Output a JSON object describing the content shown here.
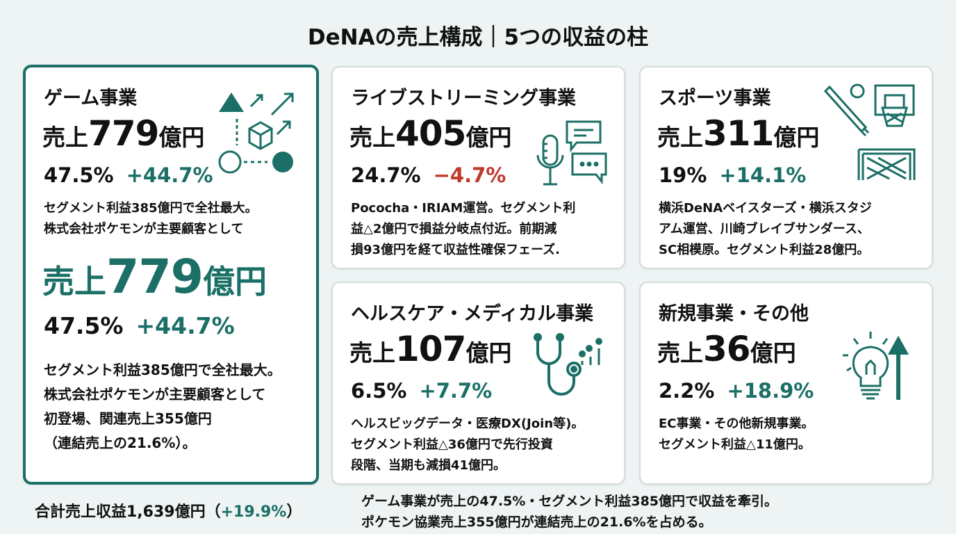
{
  "title": "DeNAの売上構成｜5つの収益の柱",
  "colors": {
    "accent": "#1b6f66",
    "negative": "#c0392b",
    "background": "#eef3f3"
  },
  "cards": [
    {
      "name": "ゲーム事業",
      "rev_prefix": "売上",
      "rev_num": "779",
      "rev_unit": "億円",
      "share": "47.5%",
      "growth": "+44.7%",
      "growth_dir": "up",
      "icon": "shapes-growth-icon",
      "desc": [
        "セグメント利益385億円で全社最大。",
        "株式会社ポケモンが主要顧客として"
      ],
      "highlight": {
        "rev_prefix": "売上",
        "rev_num": "779",
        "rev_unit": "億円",
        "share": "47.5%",
        "growth": "+44.7%",
        "desc": [
          "セグメント利益385億円で全社最大。",
          "株式会社ポケモンが主要顧客として",
          "初登場、関連売上355億円",
          "（連結売上の21.6%）。"
        ]
      }
    },
    {
      "name": "ライブストリーミング事業",
      "rev_prefix": "売上",
      "rev_num": "405",
      "rev_unit": "億円",
      "share": "24.7%",
      "growth": "−4.7%",
      "growth_dir": "down",
      "icon": "microphone-chat-icon",
      "desc": [
        "Pococha・IRIAM運営。セグメント利",
        "益△2億円で損益分岐点付近。前期減",
        "損93億円を経て収益性確保フェーズ."
      ]
    },
    {
      "name": "スポーツ事業",
      "rev_prefix": "売上",
      "rev_num": "311",
      "rev_unit": "億円",
      "share": "19%",
      "growth": "+14.1%",
      "growth_dir": "up",
      "icon": "sports-icon",
      "desc": [
        "横浜DeNAベイスターズ・横浜スタジ",
        "アム運営、川崎ブレイブサンダース、",
        "SC相模原。セグメント利益28億円。"
      ]
    },
    {
      "name": "ヘルスケア・メディカル事業",
      "rev_prefix": "売上",
      "rev_num": "107",
      "rev_unit": "億円",
      "share": "6.5%",
      "growth": "+7.7%",
      "growth_dir": "up",
      "icon": "stethoscope-icon",
      "desc": [
        "ヘルスビッグデータ・医療DX(Join等)。",
        "セグメント利益△36億円で先行投資",
        "段階、当期も減損41億円。"
      ]
    },
    {
      "name": "新規事業・その他",
      "rev_prefix": "売上",
      "rev_num": "36",
      "rev_unit": "億円",
      "share": "2.2%",
      "growth": "+18.9%",
      "growth_dir": "up",
      "icon": "lightbulb-arrow-icon",
      "desc": [
        "EC事業・その他新規事業。",
        "セグメント利益△11億円。"
      ]
    }
  ],
  "footer": {
    "total_label": "合計売上収益1,639億円（",
    "total_growth": "+19.9%",
    "total_close": "）",
    "summary": [
      "ゲーム事業が売上の47.5%・セグメント利益385億円で収益を牽引。",
      "ポケモン協業売上355億円が連結売上の21.6%を占める。"
    ]
  }
}
